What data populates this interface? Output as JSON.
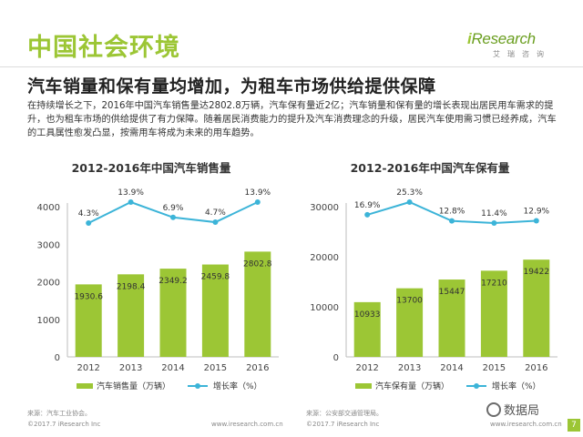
{
  "header": {
    "section_title": "中国社会环境",
    "logo_text_i": "i",
    "logo_text_rest": "Research",
    "logo_sub": "艾瑞咨询",
    "subtitle": "汽车销量和保有量均增加，为租车市场供给提供保障",
    "body": "在持续增长之下，2016年中国汽车销售量达2802.8万辆，汽车保有量近2亿；汽车销量和保有量的增长表现出居民用车需求的提升，也为租车市场的供给提供了有力保障。随着居民消费能力的提升及汽车消费理念的升级，居民汽车使用需习惯已经养成，汽车的工具属性愈发凸显，按需用车将成为未来的用车趋势。"
  },
  "colors": {
    "bar": "#9cc635",
    "line": "#3cb4d8",
    "title_green": "#9cc635"
  },
  "chart_data": [
    {
      "type": "bar",
      "title": "2012-2016年中国汽车销售量",
      "categories": [
        "2012",
        "2013",
        "2014",
        "2015",
        "2016"
      ],
      "series": [
        {
          "name": "汽车销售量（万辆）",
          "type": "bar",
          "values": [
            1930.6,
            2198.4,
            2349.2,
            2459.8,
            2802.8
          ]
        },
        {
          "name": "增长率（%）",
          "type": "line",
          "values": [
            4.3,
            13.9,
            6.9,
            4.7,
            13.9
          ]
        }
      ],
      "yticks": [
        "0",
        "1000",
        "2000",
        "3000",
        "4000"
      ],
      "ylim": [
        0,
        4000
      ],
      "value_labels": [
        "1930.6",
        "2198.4",
        "2349.2",
        "2459.8",
        "2802.8"
      ],
      "rate_labels": [
        "4.3%",
        "13.9%",
        "6.9%",
        "4.7%",
        "13.9%"
      ],
      "legend_position": "bottom",
      "grid": false
    },
    {
      "type": "bar",
      "title": "2012-2016年中国汽车保有量",
      "categories": [
        "2012",
        "2013",
        "2014",
        "2015",
        "2016"
      ],
      "series": [
        {
          "name": "汽车保有量（万辆）",
          "type": "bar",
          "values": [
            10933,
            13700,
            15447,
            17210,
            19422
          ]
        },
        {
          "name": "增长率（%）",
          "type": "line",
          "values": [
            16.9,
            25.3,
            12.8,
            11.4,
            12.9
          ]
        }
      ],
      "yticks": [
        "0",
        "10000",
        "20000",
        "30000"
      ],
      "ylim": [
        0,
        30000
      ],
      "value_labels": [
        "10933",
        "13700",
        "15447",
        "17210",
        "19422"
      ],
      "rate_labels": [
        "16.9%",
        "25.3%",
        "12.8%",
        "11.4%",
        "12.9%"
      ],
      "legend_position": "bottom",
      "grid": false
    }
  ],
  "sources": {
    "left": "来源：汽车工业协会。",
    "right": "来源：公安部交通管理局。"
  },
  "footer": {
    "copyright_left": "©2017.7 iResearch Inc",
    "url_left": "www.iresearch.com.cn",
    "copyright_right": "©2017.7 iResearch Inc",
    "url_right": "www.iresearch.com.cn"
  },
  "watermark": "数据局",
  "page_number": "7"
}
